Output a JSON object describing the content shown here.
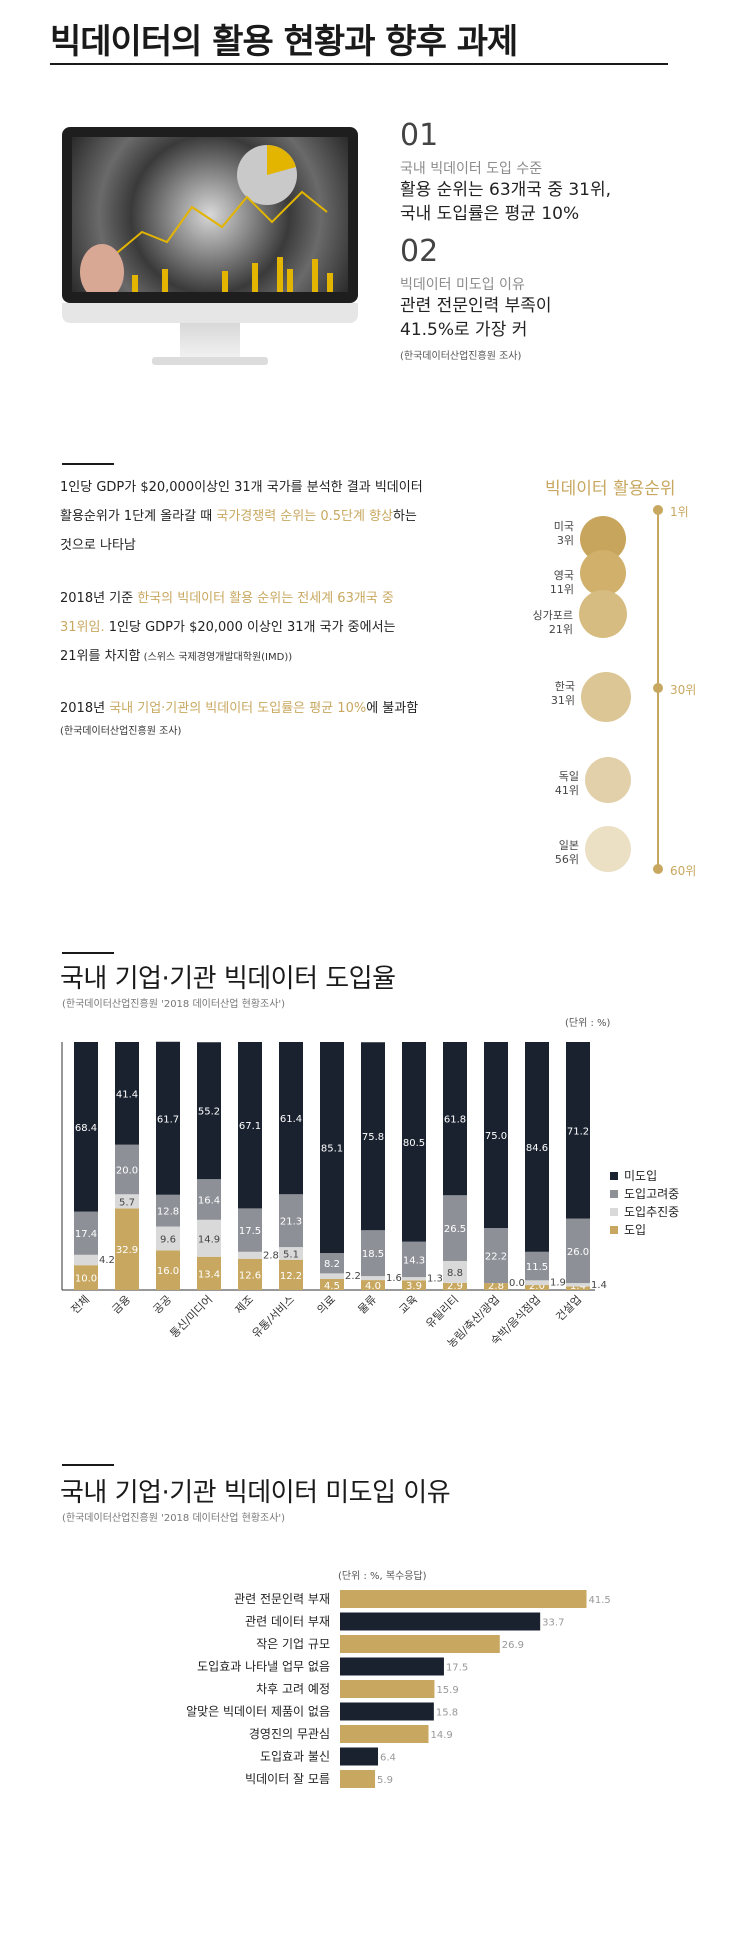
{
  "header": {
    "title": "빅데이터의 활용 현황과 향후 과제"
  },
  "stats": [
    {
      "num": "01",
      "sub": "국내 빅데이터 도입 수준",
      "line1": "활용 순위는 63개국 중 31위,",
      "line2": "국내 도입률은 평균 10%"
    },
    {
      "num": "02",
      "sub": "빅데이터 미도입 이유",
      "line1": "관련 전문인력 부족이",
      "line2": "41.5%로 가장 커",
      "source": "(한국데이터산업진흥원 조사)"
    }
  ],
  "paragraphs": {
    "p1": {
      "a": "1인당 GDP가 $20,000이상인 31개 국가를 분석한 결과 빅데이터",
      "b": "활용순위가 1단계 올라갈 때 ",
      "b_hl": "국가경쟁력 순위는 0.5단계 향상",
      "b2": "하는",
      "c": "것으로 나타남"
    },
    "p2": {
      "a": "2018년 기준 ",
      "a_hl": "한국의 빅데이터 활용 순위는 전세계 63개국 중",
      "b_hl": "31위임.",
      "b": " 1인당 GDP가 $20,000 이상인 31개 국가 중에서는",
      "c": "21위를 차지함",
      "c_small": " (스위스 국제경영개발대학원(IMD))"
    },
    "p3": {
      "a": "2018년 ",
      "a_hl": "국내 기업·기관의 빅데이터 도입률은 평균 10%",
      "a2": "에 불과함",
      "source": "(한국데이터산업진흥원 조사)"
    }
  },
  "ranking": {
    "title": "빅데이터 활용순위",
    "ticks": [
      "1위",
      "30위",
      "60위"
    ],
    "items": [
      {
        "country": "미국",
        "rank": "3위"
      },
      {
        "country": "영국",
        "rank": "11위"
      },
      {
        "country": "싱가포르",
        "rank": "21위"
      },
      {
        "country": "한국",
        "rank": "31위"
      },
      {
        "country": "독일",
        "rank": "41위"
      },
      {
        "country": "일본",
        "rank": "56위"
      }
    ],
    "colors": [
      "#c8a55c",
      "#d0b06b",
      "#d6bc80",
      "#dcc695",
      "#e2d0aa",
      "#ebdfc4"
    ]
  },
  "chart_data": [
    {
      "type": "bar",
      "title": "국내 기업·기관 빅데이터 도입율",
      "source": "(한국데이터산업진흥원 '2018 데이터산업 현황조사')",
      "unit": "(단위 : %)",
      "categories": [
        "전체",
        "금융",
        "공공",
        "통신/미디어",
        "제조",
        "유통/서비스",
        "의료",
        "물류",
        "교육",
        "유틸리티",
        "농림/축산/광업",
        "숙박/음식점업",
        "건설업"
      ],
      "series": [
        {
          "name": "도입",
          "color": "#c8a860",
          "values": [
            10.0,
            32.9,
            16.0,
            13.4,
            12.6,
            12.2,
            4.5,
            4.0,
            3.9,
            2.9,
            2.8,
            2.0,
            1.4
          ]
        },
        {
          "name": "도입추진중",
          "color": "#d9d9d9",
          "values": [
            4.2,
            5.7,
            9.6,
            14.9,
            2.8,
            5.1,
            2.2,
            1.6,
            1.3,
            8.8,
            0.0,
            1.9,
            1.4
          ]
        },
        {
          "name": "도입고려중",
          "color": "#8e9097",
          "values": [
            17.4,
            20.0,
            12.8,
            16.4,
            17.5,
            21.3,
            8.2,
            18.5,
            14.3,
            26.5,
            22.2,
            11.5,
            26.0
          ]
        },
        {
          "name": "미도입",
          "color": "#1a2230",
          "values": [
            68.4,
            41.4,
            61.7,
            55.2,
            67.1,
            61.4,
            85.1,
            75.8,
            80.5,
            61.8,
            75.0,
            84.6,
            71.2
          ]
        }
      ],
      "ylim": [
        0,
        100
      ],
      "legend": "right"
    },
    {
      "type": "bar",
      "orientation": "horizontal",
      "title": "국내 기업·기관 빅데이터 미도입 이유",
      "source": "(한국데이터산업진흥원 '2018 데이터산업 현황조사')",
      "unit": "(단위 : %, 복수응답)",
      "categories": [
        "관련 전문인력 부재",
        "관련 데이터 부재",
        "작은 기업 규모",
        "도입효과 나타낼 업무 없음",
        "차후 고려 예정",
        "알맞은 빅데이터 제품이 없음",
        "경영진의 무관심",
        "도입효과 불신",
        "빅데이터 잘 모름"
      ],
      "values": [
        41.5,
        33.7,
        26.9,
        17.5,
        15.9,
        15.8,
        14.9,
        6.4,
        5.9
      ],
      "colors": [
        "#c8a860",
        "#1a2230",
        "#c8a860",
        "#1a2230",
        "#c8a860",
        "#1a2230",
        "#c8a860",
        "#1a2230",
        "#c8a860"
      ],
      "xlim": [
        0,
        45
      ]
    }
  ]
}
